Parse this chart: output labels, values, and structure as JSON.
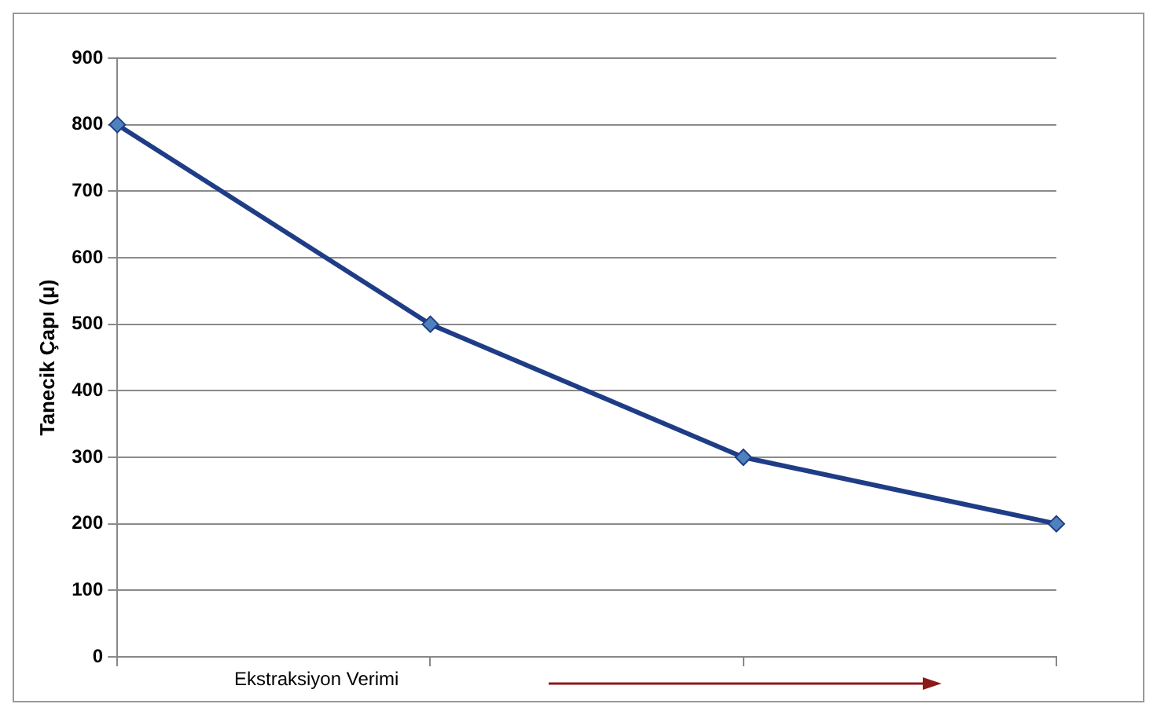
{
  "chart_data": {
    "type": "line",
    "xlabel": "Ekstraksiyon Verimi",
    "ylabel": "Tanecik Çapı (μ)",
    "categories": [
      null,
      null,
      null,
      null
    ],
    "series": [
      {
        "color": "#1f3d86",
        "values": [
          800,
          500,
          300,
          200
        ]
      }
    ],
    "ylim": [
      0,
      900
    ],
    "yticks": [
      0,
      100,
      200,
      300,
      400,
      500,
      600,
      700,
      800,
      900
    ],
    "grid": "y",
    "marker": "diamond",
    "line_style": "solid",
    "tick_labels": "y"
  }
}
